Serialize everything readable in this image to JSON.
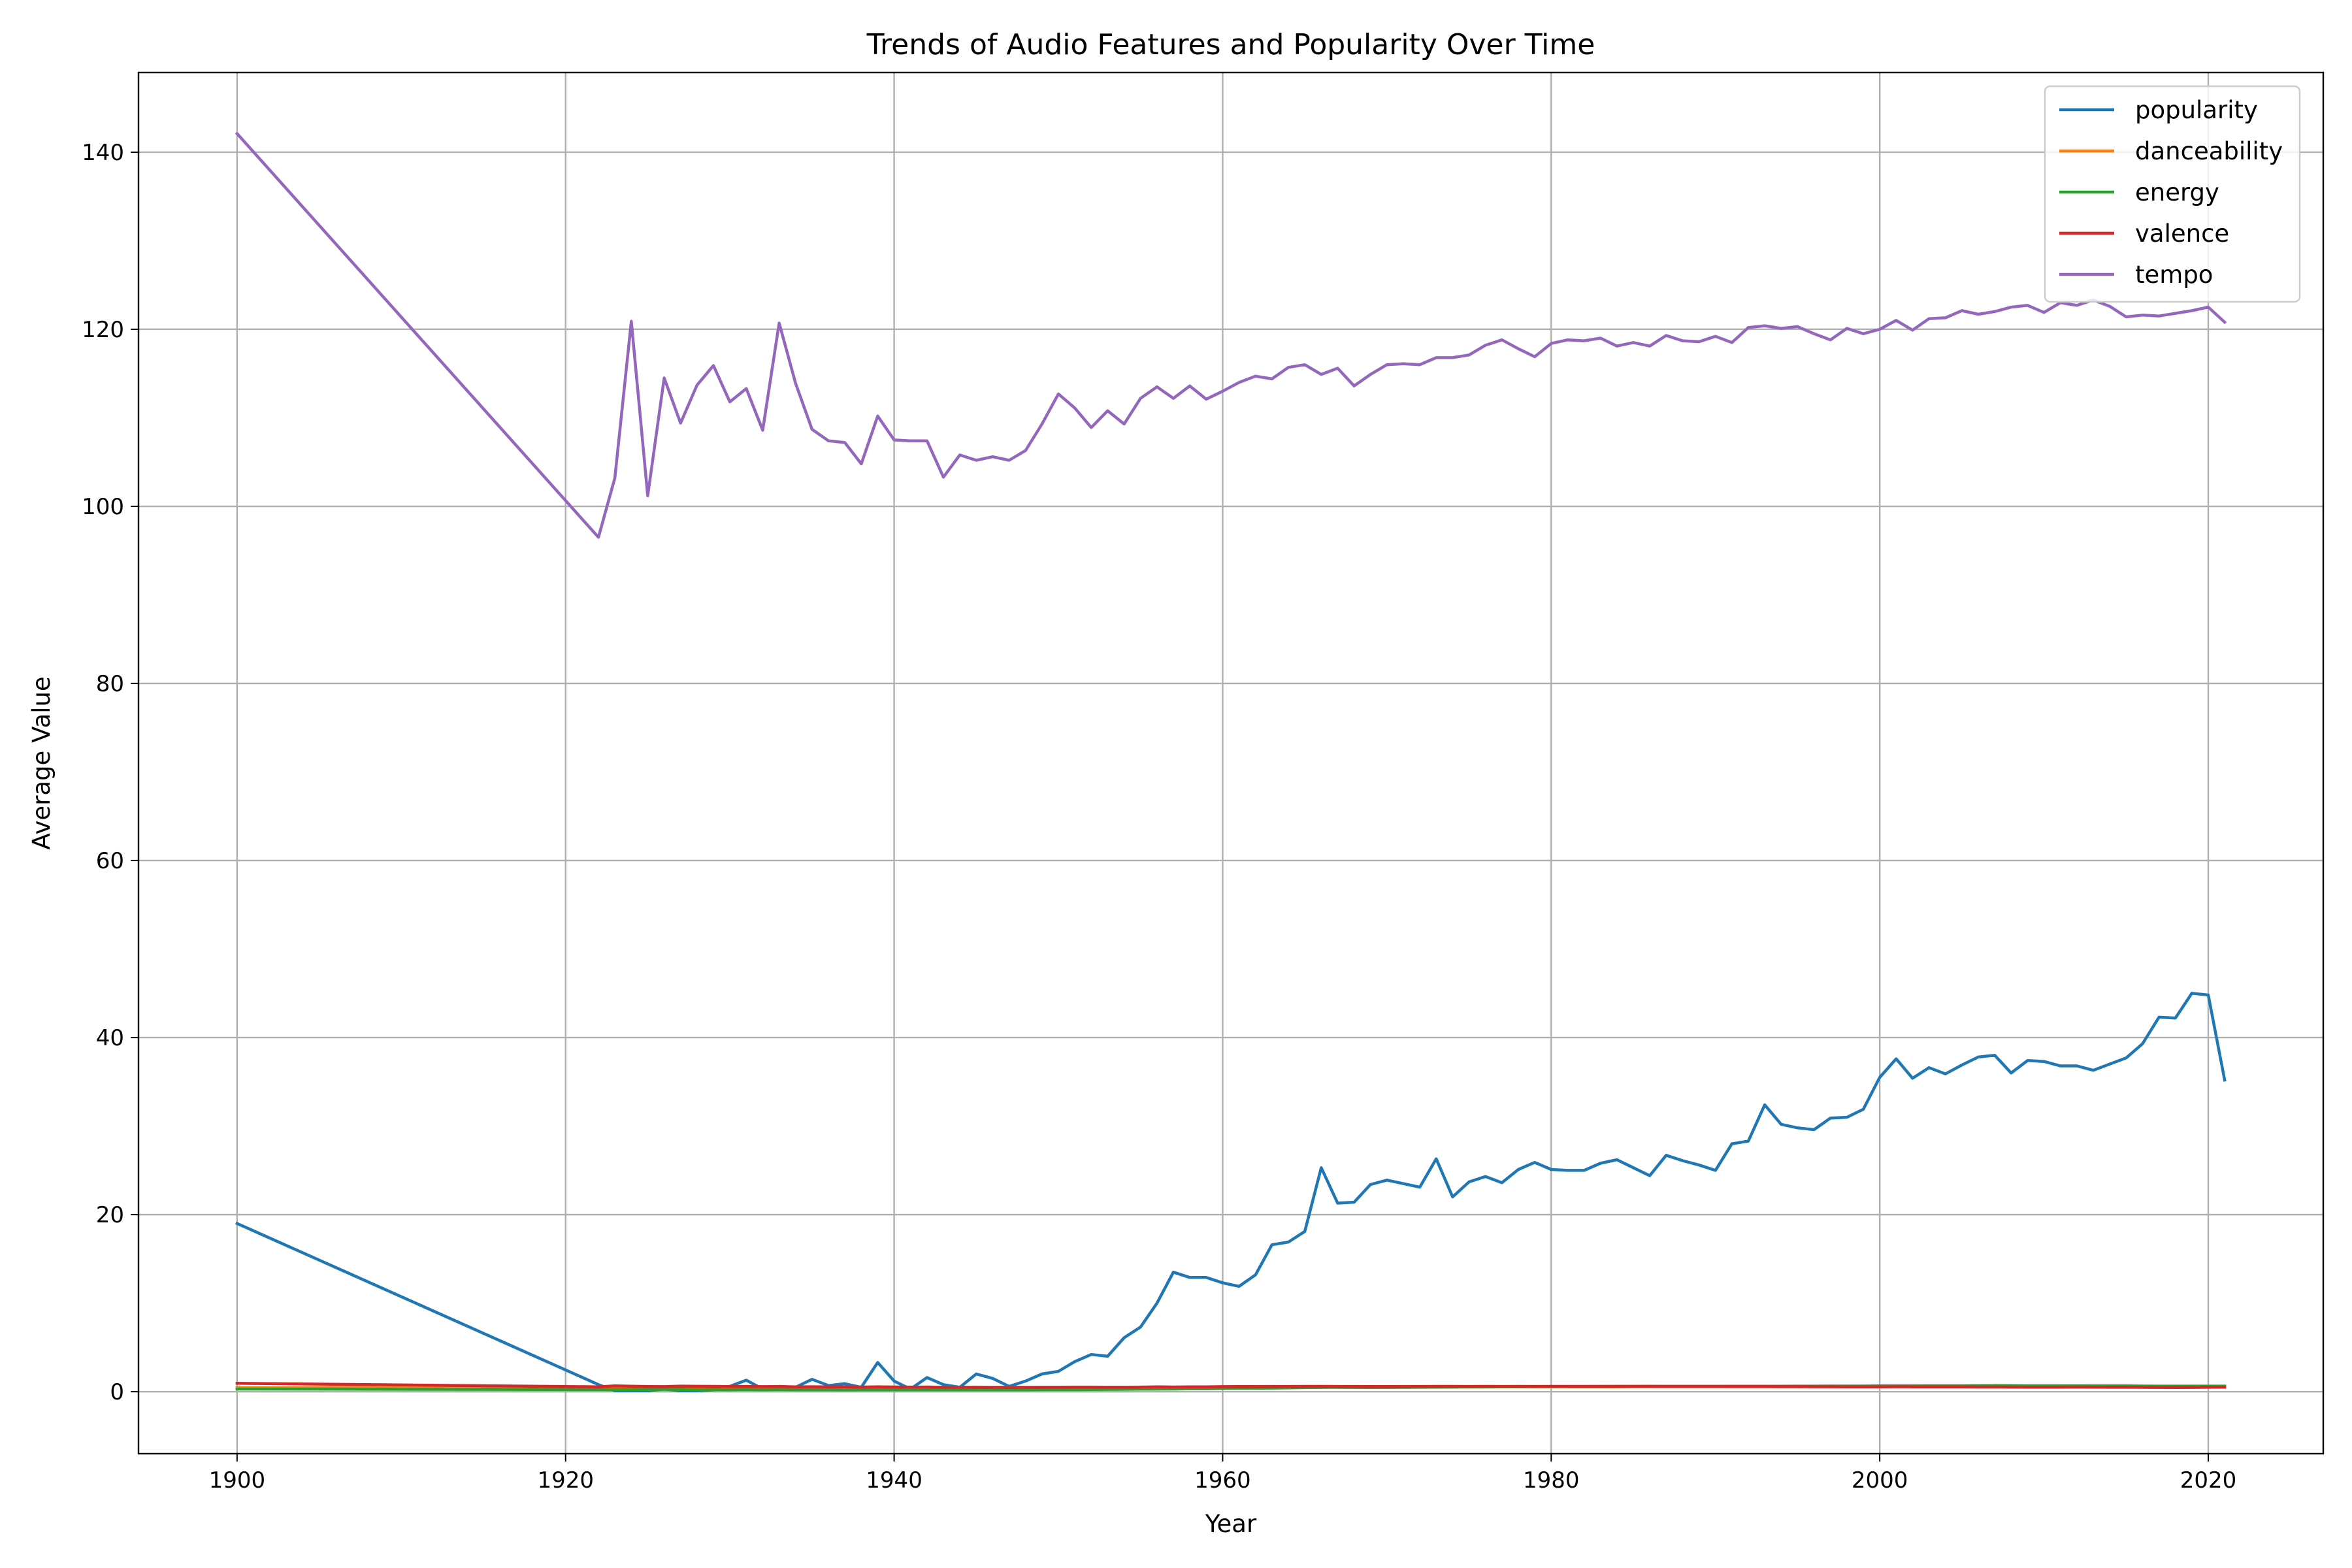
{
  "chart_data": {
    "type": "line",
    "title": "Trends of Audio Features and Popularity Over Time",
    "xlabel": "Year",
    "ylabel": "Average Value",
    "xlim": [
      1894,
      2027
    ],
    "ylim": [
      -7,
      149
    ],
    "xticks": [
      1900,
      1920,
      1940,
      1960,
      1980,
      2000,
      2020
    ],
    "yticks": [
      0,
      20,
      40,
      60,
      80,
      100,
      120,
      140
    ],
    "grid": true,
    "legend_position": "top-right",
    "x": [
      1900,
      1922,
      1923,
      1924,
      1925,
      1926,
      1927,
      1928,
      1929,
      1930,
      1931,
      1932,
      1933,
      1934,
      1935,
      1936,
      1937,
      1938,
      1939,
      1940,
      1941,
      1942,
      1943,
      1944,
      1945,
      1946,
      1947,
      1948,
      1949,
      1950,
      1951,
      1952,
      1953,
      1954,
      1955,
      1956,
      1957,
      1958,
      1959,
      1960,
      1961,
      1962,
      1963,
      1964,
      1965,
      1966,
      1967,
      1968,
      1969,
      1970,
      1971,
      1972,
      1973,
      1974,
      1975,
      1976,
      1977,
      1978,
      1979,
      1980,
      1981,
      1982,
      1983,
      1984,
      1985,
      1986,
      1987,
      1988,
      1989,
      1990,
      1991,
      1992,
      1993,
      1994,
      1995,
      1996,
      1997,
      1998,
      1999,
      2000,
      2001,
      2002,
      2003,
      2004,
      2005,
      2006,
      2007,
      2008,
      2009,
      2010,
      2011,
      2012,
      2013,
      2014,
      2015,
      2016,
      2017,
      2018,
      2019,
      2020,
      2021
    ],
    "series": [
      {
        "name": "popularity",
        "color": "#1f77b4",
        "values": [
          19.0,
          0.8,
          0.1,
          0.1,
          0.1,
          0.3,
          0.1,
          0.1,
          0.2,
          0.6,
          1.3,
          0.3,
          0.6,
          0.5,
          1.4,
          0.7,
          0.9,
          0.5,
          3.3,
          1.2,
          0.3,
          1.6,
          0.8,
          0.5,
          2.0,
          1.5,
          0.6,
          1.2,
          2.0,
          2.3,
          3.4,
          4.2,
          4.0,
          6.1,
          7.3,
          10.0,
          13.5,
          12.9,
          12.9,
          12.3,
          11.9,
          13.2,
          16.6,
          16.9,
          18.1,
          25.3,
          21.3,
          21.4,
          23.4,
          23.9,
          23.5,
          23.1,
          26.3,
          22.0,
          23.7,
          24.3,
          23.6,
          25.1,
          25.9,
          25.1,
          25.0,
          25.0,
          25.8,
          26.2,
          25.3,
          24.4,
          26.7,
          26.1,
          25.6,
          25.0,
          28.0,
          28.3,
          32.4,
          30.2,
          29.8,
          29.6,
          30.9,
          31.0,
          31.9,
          35.5,
          37.6,
          35.4,
          36.6,
          35.9,
          36.9,
          37.8,
          38.0,
          36.0,
          37.4,
          37.3,
          36.8,
          36.8,
          36.3,
          37.0,
          37.7,
          39.3,
          42.3,
          42.2,
          45.0,
          44.8,
          35.2
        ]
      },
      {
        "name": "danceability",
        "color": "#ff7f0e",
        "values": [
          0.45,
          0.4,
          0.42,
          0.45,
          0.48,
          0.46,
          0.52,
          0.5,
          0.55,
          0.49,
          0.5,
          0.48,
          0.5,
          0.49,
          0.55,
          0.52,
          0.54,
          0.5,
          0.56,
          0.52,
          0.5,
          0.53,
          0.51,
          0.5,
          0.52,
          0.5,
          0.5,
          0.5,
          0.5,
          0.5,
          0.49,
          0.49,
          0.5,
          0.49,
          0.5,
          0.49,
          0.49,
          0.49,
          0.5,
          0.51,
          0.51,
          0.51,
          0.51,
          0.52,
          0.52,
          0.52,
          0.51,
          0.52,
          0.52,
          0.52,
          0.53,
          0.53,
          0.53,
          0.54,
          0.54,
          0.55,
          0.55,
          0.56,
          0.56,
          0.56,
          0.56,
          0.56,
          0.56,
          0.56,
          0.57,
          0.57,
          0.57,
          0.57,
          0.57,
          0.57,
          0.57,
          0.57,
          0.57,
          0.57,
          0.57,
          0.57,
          0.57,
          0.57,
          0.57,
          0.57,
          0.58,
          0.58,
          0.58,
          0.58,
          0.58,
          0.58,
          0.58,
          0.58,
          0.58,
          0.58,
          0.58,
          0.58,
          0.59,
          0.59,
          0.6,
          0.61,
          0.62,
          0.63,
          0.64,
          0.64,
          0.64
        ]
      },
      {
        "name": "energy",
        "color": "#2ca02c",
        "values": [
          0.3,
          0.24,
          0.22,
          0.23,
          0.25,
          0.26,
          0.25,
          0.21,
          0.23,
          0.22,
          0.25,
          0.21,
          0.24,
          0.22,
          0.22,
          0.21,
          0.2,
          0.21,
          0.22,
          0.22,
          0.22,
          0.21,
          0.21,
          0.21,
          0.21,
          0.22,
          0.22,
          0.22,
          0.23,
          0.24,
          0.24,
          0.25,
          0.26,
          0.27,
          0.28,
          0.29,
          0.3,
          0.32,
          0.33,
          0.36,
          0.38,
          0.39,
          0.41,
          0.44,
          0.46,
          0.48,
          0.49,
          0.48,
          0.47,
          0.48,
          0.49,
          0.5,
          0.51,
          0.52,
          0.53,
          0.53,
          0.54,
          0.56,
          0.57,
          0.57,
          0.58,
          0.58,
          0.59,
          0.6,
          0.6,
          0.61,
          0.61,
          0.61,
          0.61,
          0.61,
          0.62,
          0.62,
          0.62,
          0.62,
          0.63,
          0.63,
          0.64,
          0.64,
          0.64,
          0.65,
          0.66,
          0.66,
          0.67,
          0.67,
          0.67,
          0.68,
          0.69,
          0.68,
          0.67,
          0.67,
          0.67,
          0.67,
          0.66,
          0.66,
          0.65,
          0.64,
          0.63,
          0.62,
          0.61,
          0.61,
          0.61
        ]
      },
      {
        "name": "valence",
        "color": "#d62728",
        "values": [
          0.95,
          0.55,
          0.65,
          0.62,
          0.58,
          0.57,
          0.63,
          0.61,
          0.6,
          0.58,
          0.59,
          0.57,
          0.58,
          0.55,
          0.56,
          0.55,
          0.55,
          0.52,
          0.54,
          0.53,
          0.52,
          0.52,
          0.5,
          0.5,
          0.5,
          0.49,
          0.48,
          0.49,
          0.5,
          0.51,
          0.52,
          0.52,
          0.51,
          0.51,
          0.52,
          0.55,
          0.53,
          0.54,
          0.54,
          0.57,
          0.58,
          0.58,
          0.59,
          0.59,
          0.6,
          0.6,
          0.59,
          0.59,
          0.58,
          0.58,
          0.59,
          0.59,
          0.6,
          0.6,
          0.59,
          0.6,
          0.59,
          0.6,
          0.59,
          0.6,
          0.6,
          0.6,
          0.6,
          0.6,
          0.6,
          0.6,
          0.59,
          0.59,
          0.59,
          0.59,
          0.58,
          0.58,
          0.58,
          0.57,
          0.57,
          0.56,
          0.56,
          0.55,
          0.55,
          0.55,
          0.56,
          0.55,
          0.55,
          0.55,
          0.54,
          0.53,
          0.53,
          0.52,
          0.51,
          0.51,
          0.51,
          0.52,
          0.51,
          0.5,
          0.5,
          0.49,
          0.48,
          0.47,
          0.48,
          0.5,
          0.52
        ]
      },
      {
        "name": "tempo",
        "color": "#9467bd",
        "values": [
          142.1,
          96.5,
          103.2,
          120.9,
          101.2,
          114.5,
          109.4,
          113.7,
          115.9,
          111.8,
          113.3,
          108.6,
          120.7,
          113.9,
          108.7,
          107.4,
          107.2,
          104.8,
          110.2,
          107.5,
          107.4,
          107.4,
          103.3,
          105.8,
          105.2,
          105.6,
          105.2,
          106.3,
          109.3,
          112.7,
          111.1,
          108.9,
          110.8,
          109.3,
          112.2,
          113.5,
          112.2,
          113.6,
          112.1,
          113.0,
          114.0,
          114.7,
          114.4,
          115.7,
          116.0,
          114.9,
          115.6,
          113.6,
          114.9,
          116.0,
          116.1,
          116.0,
          116.8,
          116.8,
          117.1,
          118.2,
          118.8,
          117.8,
          116.9,
          118.4,
          118.8,
          118.7,
          119.0,
          118.1,
          118.5,
          118.1,
          119.3,
          118.7,
          118.6,
          119.2,
          118.5,
          120.2,
          120.4,
          120.1,
          120.3,
          119.5,
          118.8,
          120.1,
          119.5,
          120.0,
          121.0,
          119.9,
          121.2,
          121.3,
          122.1,
          121.7,
          122.0,
          122.5,
          122.7,
          121.9,
          123.0,
          122.7,
          123.3,
          122.6,
          121.4,
          121.6,
          121.5,
          121.8,
          122.1,
          122.5,
          120.8
        ]
      }
    ]
  }
}
